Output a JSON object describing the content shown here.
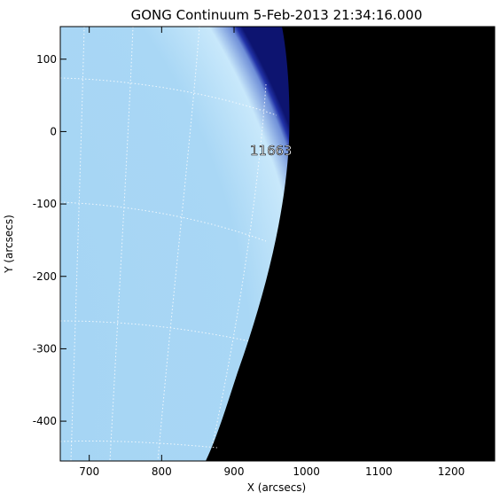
{
  "image": {
    "title": "GONG Continuum   5-Feb-2013 21:34:16.000",
    "xlabel": "X (arcsecs)",
    "ylabel": "Y (arcsecs)",
    "active_region_label": "11663",
    "x_ticks": [
      "700",
      "800",
      "900",
      "1000",
      "1100",
      "1200"
    ],
    "y_ticks": [
      "100",
      "0",
      "-100",
      "-200",
      "-300",
      "-400"
    ],
    "x_range": [
      660,
      1260
    ],
    "y_range": [
      -455,
      145
    ],
    "colors": {
      "disk": "#a9d6f4",
      "disk_edge": "#1a2aa0",
      "space": "#000000",
      "grid": "#ffffff"
    }
  }
}
